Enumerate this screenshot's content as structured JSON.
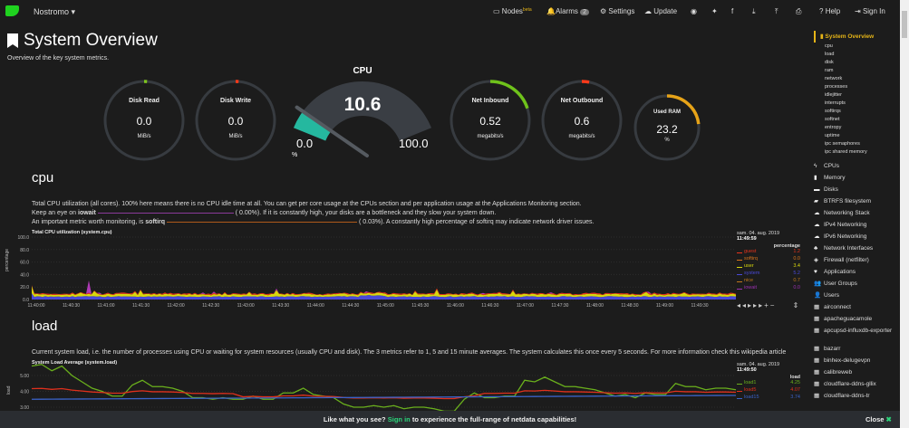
{
  "nav": {
    "brand": "Nostromo",
    "nodes": "Nodes",
    "nodes_badge": "beta",
    "alarms": "Alarms",
    "alarms_count": "2",
    "settings": "Settings",
    "update": "Update",
    "help": "Help",
    "signin": "Sign In"
  },
  "page": {
    "title": "System Overview",
    "subtitle": "Overview of the key system metrics."
  },
  "gauges": {
    "disk_read": {
      "label": "Disk Read",
      "value": "0.0",
      "unit": "MiB/s",
      "color": "#7fc41f",
      "fill": 0
    },
    "disk_write": {
      "label": "Disk Write",
      "value": "0.0",
      "unit": "MiB/s",
      "color": "#ff3a1a",
      "fill": 0
    },
    "cpu": {
      "label": "CPU",
      "value": "10.6",
      "min": "0.0",
      "max": "100.0",
      "unit": "%",
      "color": "#25b89f",
      "fill": 0.106
    },
    "net_in": {
      "label": "Net Inbound",
      "value": "0.52",
      "unit": "megabits/s",
      "color": "#6fc21b",
      "fill": 0.2
    },
    "net_out": {
      "label": "Net Outbound",
      "value": "0.6",
      "unit": "megabits/s",
      "color": "#ff3a1a",
      "fill": 0.03
    },
    "ram": {
      "label": "Used RAM",
      "value": "23.2",
      "unit": "%",
      "color": "#e6a318",
      "fill": 0.232
    }
  },
  "cpu_section": {
    "heading": "cpu",
    "desc1": "Total CPU utilization (all cores). 100% here means there is no CPU idle time at all. You can get per core usage at the CPUs section and per application usage at the Applications Monitoring section.",
    "desc2a": "Keep an eye on",
    "desc2b": "iowait",
    "desc2c": "(      0.00%). If it is constantly high, your disks are a bottleneck and they slow your system down.",
    "desc3a": "An important metric worth monitoring, is",
    "desc3b": "softirq",
    "desc3c": "(      0.03%). A constantly high percentage of softirq may indicate network driver issues.",
    "chart_title": "Total CPU utilization (system.cpu)",
    "ylabel": "percentage",
    "yticks": [
      "100.0",
      "80.0",
      "60.0",
      "40.0",
      "20.0",
      "0.0"
    ],
    "xticks": [
      "11:40:00",
      "11:40:30",
      "11:41:00",
      "11:41:30",
      "11:42:00",
      "11:42:30",
      "11:43:00",
      "11:43:30",
      "11:44:00",
      "11:44:30",
      "11:45:00",
      "11:45:30",
      "11:46:00",
      "11:46:30",
      "11:47:00",
      "11:47:30",
      "11:48:00",
      "11:48:30",
      "11:49:00",
      "11:49:30"
    ],
    "date": "sam. 04. aug. 2019",
    "time": "11:49:59",
    "unit": "percentage",
    "legend": [
      {
        "name": "guest",
        "value": "1.2",
        "color": "#e8341c"
      },
      {
        "name": "softirq",
        "value": "0.0",
        "color": "#d9741c"
      },
      {
        "name": "user",
        "value": "3.4",
        "color": "#d8d80c"
      },
      {
        "name": "system",
        "value": "5.2",
        "color": "#4a4ad8"
      },
      {
        "name": "nice",
        "value": "0.7",
        "color": "#c0781c"
      },
      {
        "name": "iowait",
        "value": "0.0",
        "color": "#9c30b0"
      }
    ]
  },
  "load_section": {
    "heading": "load",
    "desc": "Current system load, i.e. the number of processes using CPU or waiting for system resources (usually CPU and disk). The 3 metrics refer to 1, 5 and 15 minute averages. The system calculates this once every 5 seconds. For more information check this wikipedia article",
    "chart_title": "System Load Average (system.load)",
    "ylabel": "load",
    "yticks": [
      "5.00",
      "4.00",
      "3.00"
    ],
    "date": "sam. 04. aug. 2019",
    "time": "11:49:50",
    "unit": "load",
    "legend": [
      {
        "name": "load1",
        "value": "4.25",
        "color": "#6ab01c"
      },
      {
        "name": "load5",
        "value": "4.07",
        "color": "#e0301c"
      },
      {
        "name": "load15",
        "value": "3.74",
        "color": "#3a62c8"
      }
    ]
  },
  "sidebar": {
    "active": "System Overview",
    "sub": [
      "cpu",
      "load",
      "disk",
      "ram",
      "network",
      "processes",
      "idlejitter",
      "interrupts",
      "softirqs",
      "softnet",
      "entropy",
      "uptime",
      "ipc semaphores",
      "ipc shared memory"
    ],
    "sections": [
      {
        "icon": "bolt",
        "glyph": "ϟ",
        "label": "CPUs"
      },
      {
        "icon": "memory",
        "glyph": "▮",
        "label": "Memory"
      },
      {
        "icon": "hdd",
        "glyph": "▬",
        "label": "Disks"
      },
      {
        "icon": "folder",
        "glyph": "▰",
        "label": "BTRFS filesystem"
      },
      {
        "icon": "cloud",
        "glyph": "☁",
        "label": "Networking Stack"
      },
      {
        "icon": "cloud",
        "glyph": "☁",
        "label": "IPv4 Networking"
      },
      {
        "icon": "cloud",
        "glyph": "☁",
        "label": "IPv6 Networking"
      },
      {
        "icon": "sitemap",
        "glyph": "♣",
        "label": "Network Interfaces"
      },
      {
        "icon": "shield",
        "glyph": "◈",
        "label": "Firewall (netfilter)"
      },
      {
        "icon": "heartbeat",
        "glyph": "♥",
        "label": "Applications"
      },
      {
        "icon": "users",
        "glyph": "👥",
        "label": "User Groups"
      },
      {
        "icon": "user",
        "glyph": "👤",
        "label": "Users"
      },
      {
        "icon": "grid",
        "glyph": "▦",
        "label": "airconnect"
      },
      {
        "icon": "grid",
        "glyph": "▦",
        "label": "apacheguacamole"
      },
      {
        "icon": "grid",
        "glyph": "▦",
        "label": "apcupsd-influxdb-exporter"
      },
      {
        "icon": "grid",
        "glyph": "▦",
        "label": "bazarr"
      },
      {
        "icon": "grid",
        "glyph": "▦",
        "label": "binhex-delugevpn"
      },
      {
        "icon": "grid",
        "glyph": "▦",
        "label": "calibreweb"
      },
      {
        "icon": "grid",
        "glyph": "▦",
        "label": "cloudflare-ddns-gllix"
      },
      {
        "icon": "grid",
        "glyph": "▦",
        "label": "cloudflare-ddns-tr"
      }
    ],
    "close": "Close"
  },
  "footer": {
    "pre": "Like what you see?",
    "link": "Sign in",
    "post": "to experience the full-range of netdata capabilities!",
    "close": "Close"
  }
}
